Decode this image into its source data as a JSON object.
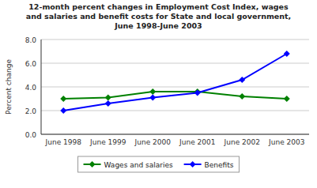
{
  "chart_data": {
    "type": "line",
    "title": "12-month percent changes in Employment Cost Index, wages\nand salaries and benefit costs for State and local government,\nJune 1998-June 2003",
    "y_label": "Percent change",
    "categories": [
      "June 1998",
      "June 1999",
      "June 2000",
      "June 2001",
      "June 2002",
      "June 2003"
    ],
    "series": [
      {
        "name": "Wages and salaries",
        "color": "#008000",
        "marker": "diamond",
        "values": [
          3.0,
          3.1,
          3.6,
          3.6,
          3.2,
          3.0
        ]
      },
      {
        "name": "Benefits",
        "color": "#0000FF",
        "marker": "diamond",
        "values": [
          2.0,
          2.6,
          3.1,
          3.5,
          4.6,
          6.8
        ]
      }
    ],
    "ylim": [
      0.0,
      8.0
    ],
    "yticks": [
      {
        "value": 0.0,
        "label": "0.0"
      },
      {
        "value": 2.0,
        "label": "2.0"
      },
      {
        "value": 4.0,
        "label": "4.0"
      },
      {
        "value": 6.0,
        "label": "6.0"
      },
      {
        "value": 8.0,
        "label": "8.0"
      }
    ],
    "grid": true,
    "legend": "bottom"
  }
}
